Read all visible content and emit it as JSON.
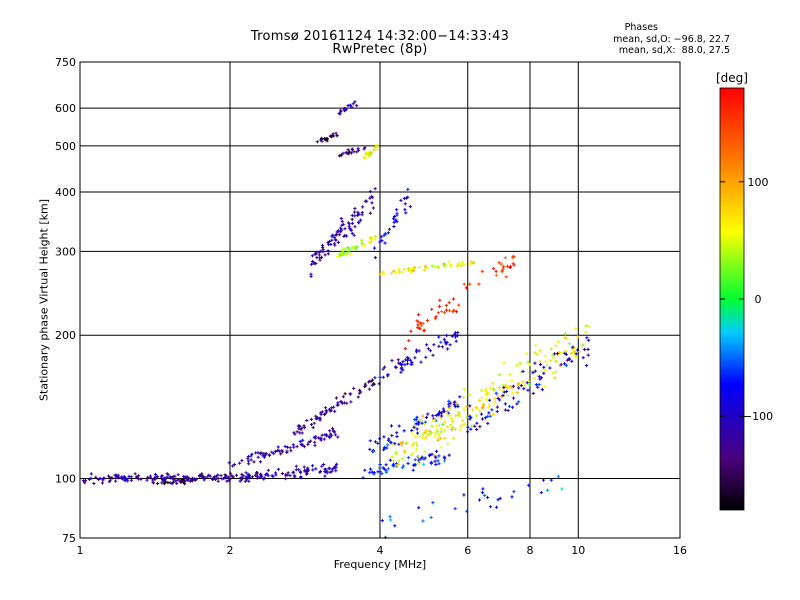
{
  "chart_data": {
    "type": "scatter",
    "title": "Tromsø 20161124 14:32:00−14:33:43",
    "subtitle": "RwPretec (8p)",
    "xlabel": "Frequency [MHz]",
    "ylabel": "Stationary phase Virtual Height [km]",
    "x_scale": "log",
    "y_scale": "log",
    "xlim": [
      1,
      16
    ],
    "ylim": [
      75,
      750
    ],
    "x_ticks": [
      "1",
      "2",
      "4",
      "6",
      "8",
      "10",
      "16"
    ],
    "x_tick_values": [
      1,
      2,
      4,
      6,
      8,
      10,
      16
    ],
    "y_ticks": [
      "75",
      "100",
      "200",
      "300",
      "400",
      "500",
      "600",
      "750"
    ],
    "y_tick_values": [
      75,
      100,
      200,
      300,
      400,
      500,
      600,
      750
    ],
    "grid": true,
    "phases": {
      "heading": "Phases",
      "o_mode": "mean, sd,O: −96.8, 22.7",
      "x_mode": "mean, sd,X:  88.0, 27.5"
    },
    "colorbar": {
      "label": "[deg]",
      "range": [
        -180,
        180
      ],
      "ticks": [
        "100",
        "0",
        "−100"
      ],
      "tick_values": [
        100,
        0,
        -100
      ]
    },
    "traces": [
      {
        "x_start": 1.02,
        "x_end": 2.3,
        "y_start": 100,
        "y_end": 101,
        "phase": -120,
        "count": 160,
        "spread": 0.025
      },
      {
        "x_start": 1.4,
        "x_end": 1.7,
        "y_start": 98,
        "y_end": 99,
        "phase": -150,
        "count": 30,
        "spread": 0.015
      },
      {
        "x_start": 2.3,
        "x_end": 3.3,
        "y_start": 101,
        "y_end": 105,
        "phase": -110,
        "count": 70,
        "spread": 0.03
      },
      {
        "x_start": 2.0,
        "x_end": 3.3,
        "y_start": 106,
        "y_end": 125,
        "phase": -112,
        "count": 80,
        "spread": 0.03
      },
      {
        "x_start": 2.7,
        "x_end": 3.9,
        "y_start": 125,
        "y_end": 160,
        "phase": -125,
        "count": 70,
        "spread": 0.035
      },
      {
        "x_start": 3.6,
        "x_end": 5.5,
        "y_start": 103,
        "y_end": 112,
        "phase": -70,
        "count": 60,
        "spread": 0.04
      },
      {
        "x_start": 3.8,
        "x_end": 5.8,
        "y_start": 115,
        "y_end": 145,
        "phase": -80,
        "count": 70,
        "spread": 0.06
      },
      {
        "x_start": 4.0,
        "x_end": 5.8,
        "y_start": 165,
        "y_end": 200,
        "phase": -100,
        "count": 60,
        "spread": 0.05
      },
      {
        "x_start": 4.2,
        "x_end": 10.5,
        "y_start": 110,
        "y_end": 200,
        "phase": 60,
        "count": 220,
        "spread": 0.12
      },
      {
        "x_start": 6.0,
        "x_end": 10.5,
        "y_start": 130,
        "y_end": 190,
        "phase": -95,
        "count": 80,
        "spread": 0.1
      },
      {
        "x_start": 2.9,
        "x_end": 3.9,
        "y_start": 280,
        "y_end": 390,
        "phase": -118,
        "count": 90,
        "spread": 0.07
      },
      {
        "x_start": 3.3,
        "x_end": 3.9,
        "y_start": 295,
        "y_end": 320,
        "phase": 45,
        "count": 40,
        "spread": 0.025
      },
      {
        "x_start": 3.9,
        "x_end": 4.6,
        "y_start": 300,
        "y_end": 390,
        "phase": -90,
        "count": 30,
        "spread": 0.06
      },
      {
        "x_start": 4.0,
        "x_end": 6.2,
        "y_start": 270,
        "y_end": 285,
        "phase": 60,
        "count": 50,
        "spread": 0.015
      },
      {
        "x_start": 3.3,
        "x_end": 3.8,
        "y_start": 480,
        "y_end": 495,
        "phase": -130,
        "count": 20,
        "spread": 0.015
      },
      {
        "x_start": 3.7,
        "x_end": 4.0,
        "y_start": 470,
        "y_end": 505,
        "phase": 60,
        "count": 20,
        "spread": 0.02
      },
      {
        "x_start": 3.0,
        "x_end": 3.3,
        "y_start": 510,
        "y_end": 530,
        "phase": -150,
        "count": 20,
        "spread": 0.02
      },
      {
        "x_start": 3.3,
        "x_end": 3.6,
        "y_start": 590,
        "y_end": 615,
        "phase": -115,
        "count": 20,
        "spread": 0.02
      },
      {
        "x_start": 4.5,
        "x_end": 7.5,
        "y_start": 200,
        "y_end": 290,
        "phase": 160,
        "count": 60,
        "spread": 0.08
      },
      {
        "x_start": 4.0,
        "x_end": 9.5,
        "y_start": 78,
        "y_end": 100,
        "phase": -60,
        "count": 30,
        "spread": 0.08
      }
    ]
  }
}
